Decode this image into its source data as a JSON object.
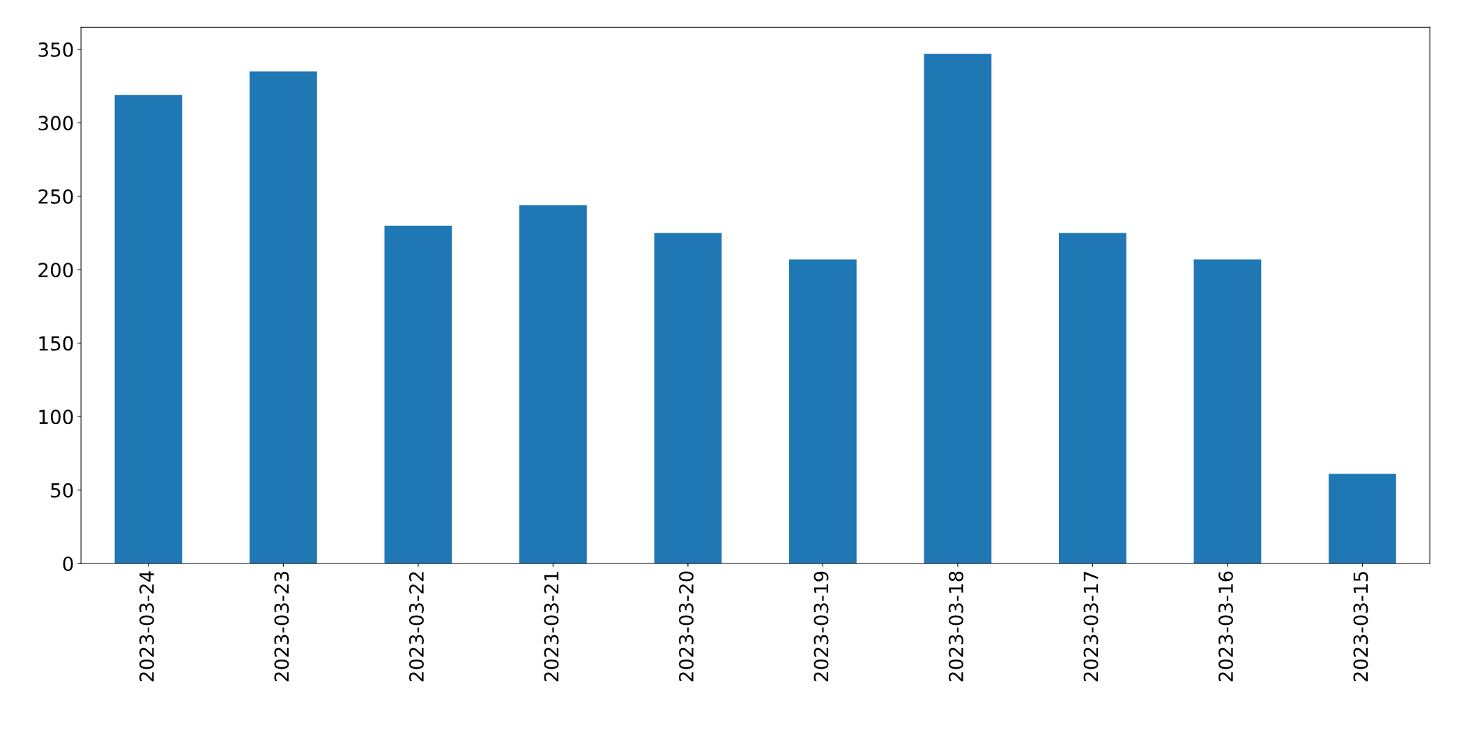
{
  "chart_data": {
    "type": "bar",
    "categories": [
      "2023-03-24",
      "2023-03-23",
      "2023-03-22",
      "2023-03-21",
      "2023-03-20",
      "2023-03-19",
      "2023-03-18",
      "2023-03-17",
      "2023-03-16",
      "2023-03-15"
    ],
    "values": [
      319,
      335,
      230,
      244,
      225,
      207,
      347,
      225,
      207,
      61
    ],
    "color": "#1f77b4",
    "ylim": [
      0,
      365
    ],
    "yticks": [
      0,
      50,
      100,
      150,
      200,
      250,
      300,
      350
    ],
    "grid": false,
    "legend": false
  }
}
